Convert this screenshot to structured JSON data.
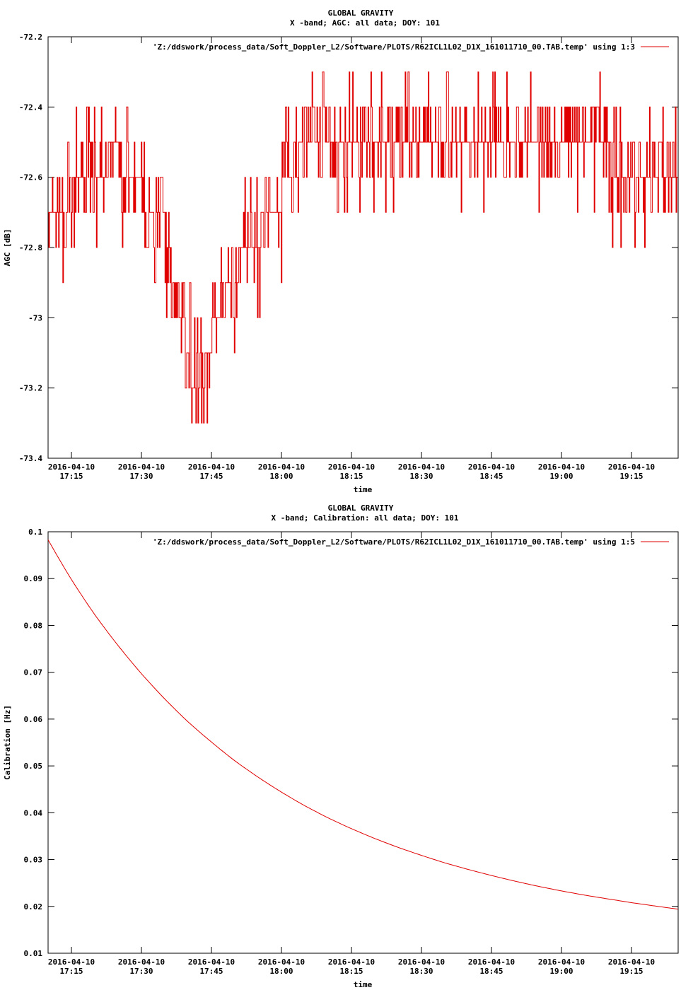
{
  "charts": [
    {
      "title": "GLOBAL GRAVITY",
      "subtitle": "X -band; AGC: all data; DOY: 101",
      "xlabel": "time",
      "ylabel": "AGC [dB]",
      "legend": "'Z:/ddswork/process_data/Soft_Doppler_L2/Software/PLOTS/R62ICL1L02_D1X_161011710_00.TAB.temp' using 1:3",
      "ytick_labels": [
        "-72.2",
        "-72.4",
        "-72.6",
        "-72.8",
        "-73",
        "-73.2",
        "-73.4"
      ],
      "xtick_dates": [
        "2016-04-10",
        "2016-04-10",
        "2016-04-10",
        "2016-04-10",
        "2016-04-10",
        "2016-04-10",
        "2016-04-10",
        "2016-04-10",
        "2016-04-10"
      ],
      "xtick_times": [
        "17:15",
        "17:30",
        "17:45",
        "18:00",
        "18:15",
        "18:30",
        "18:45",
        "19:00",
        "19:15"
      ]
    },
    {
      "title": "GLOBAL GRAVITY",
      "subtitle": "X -band; Calibration: all data; DOY: 101",
      "xlabel": "time",
      "ylabel": "Calibration [Hz]",
      "legend": "'Z:/ddswork/process_data/Soft_Doppler_L2/Software/PLOTS/R62ICL1L02_D1X_161011710_00.TAB.temp' using 1:5",
      "ytick_labels": [
        "0.1",
        "0.09",
        "0.08",
        "0.07",
        "0.06",
        "0.05",
        "0.04",
        "0.03",
        "0.02",
        "0.01"
      ],
      "xtick_dates": [
        "2016-04-10",
        "2016-04-10",
        "2016-04-10",
        "2016-04-10",
        "2016-04-10",
        "2016-04-10",
        "2016-04-10",
        "2016-04-10",
        "2016-04-10"
      ],
      "xtick_times": [
        "17:15",
        "17:30",
        "17:45",
        "18:00",
        "18:15",
        "18:30",
        "18:45",
        "19:00",
        "19:15"
      ]
    }
  ],
  "chart_data": [
    {
      "type": "line",
      "title": "GLOBAL GRAVITY",
      "subtitle": "X -band; AGC: all data; DOY: 101",
      "xlabel": "time",
      "ylabel": "AGC [dB]",
      "ylim": [
        -73.4,
        -72.2
      ],
      "xlim": [
        "2016-04-10 17:10",
        "2016-04-10 19:25"
      ],
      "yticks": [
        -72.2,
        -72.4,
        -72.6,
        -72.8,
        -73.0,
        -73.2,
        -73.4
      ],
      "xticks": [
        "2016-04-10 17:15",
        "2016-04-10 17:30",
        "2016-04-10 17:45",
        "2016-04-10 18:00",
        "2016-04-10 18:15",
        "2016-04-10 18:30",
        "2016-04-10 18:45",
        "2016-04-10 19:00",
        "2016-04-10 19:15"
      ],
      "color": "#e00000",
      "legend_position": "top-right",
      "series": [
        {
          "name": "'Z:/ddswork/process_data/Soft_Doppler_L2/Software/PLOTS/R62ICL1L02_D1X_161011710_00.TAB.temp' using 1:3",
          "x": [
            "17:10",
            "17:13",
            "17:17",
            "17:20",
            "17:23",
            "17:25",
            "17:27",
            "17:30",
            "17:33",
            "17:35",
            "17:37",
            "17:39",
            "17:40",
            "17:41",
            "17:42",
            "17:43",
            "17:44",
            "17:45",
            "17:46",
            "17:47",
            "17:49",
            "17:51",
            "17:54",
            "17:57",
            "18:00",
            "18:04",
            "18:08",
            "18:12",
            "18:15",
            "18:20",
            "18:25",
            "18:30",
            "18:35",
            "18:40",
            "18:45",
            "18:50",
            "18:55",
            "19:00",
            "19:05",
            "19:10",
            "19:15",
            "19:20",
            "19:25"
          ],
          "values": [
            -72.7,
            -72.7,
            -72.6,
            -72.6,
            -72.55,
            -72.55,
            -72.6,
            -72.65,
            -72.7,
            -72.75,
            -72.9,
            -73.0,
            -73.1,
            -73.2,
            -73.25,
            -73.2,
            -73.1,
            -73.05,
            -73.0,
            -72.95,
            -72.9,
            -72.85,
            -72.8,
            -72.7,
            -72.65,
            -72.55,
            -72.5,
            -72.5,
            -72.55,
            -72.55,
            -72.55,
            -72.55,
            -72.55,
            -72.55,
            -72.55,
            -72.55,
            -72.55,
            -72.55,
            -72.55,
            -72.55,
            -72.6,
            -72.6,
            -72.6
          ]
        }
      ]
    },
    {
      "type": "line",
      "title": "GLOBAL GRAVITY",
      "subtitle": "X -band; Calibration: all data; DOY: 101",
      "xlabel": "time",
      "ylabel": "Calibration [Hz]",
      "ylim": [
        0.01,
        0.1
      ],
      "xlim": [
        "2016-04-10 17:10",
        "2016-04-10 19:25"
      ],
      "yticks": [
        0.1,
        0.09,
        0.08,
        0.07,
        0.06,
        0.05,
        0.04,
        0.03,
        0.02,
        0.01
      ],
      "xticks": [
        "2016-04-10 17:15",
        "2016-04-10 17:30",
        "2016-04-10 17:45",
        "2016-04-10 18:00",
        "2016-04-10 18:15",
        "2016-04-10 18:30",
        "2016-04-10 18:45",
        "2016-04-10 19:00",
        "2016-04-10 19:15"
      ],
      "color": "#e00000",
      "legend_position": "top-right",
      "series": [
        {
          "name": "'Z:/ddswork/process_data/Soft_Doppler_L2/Software/PLOTS/R62ICL1L02_D1X_161011710_00.TAB.temp' using 1:5",
          "x": [
            "17:10",
            "17:15",
            "17:20",
            "17:25",
            "17:30",
            "17:35",
            "17:40",
            "17:45",
            "17:50",
            "17:55",
            "18:00",
            "18:05",
            "18:10",
            "18:15",
            "18:20",
            "18:25",
            "18:30",
            "18:35",
            "18:40",
            "18:45",
            "18:50",
            "18:55",
            "19:00",
            "19:05",
            "19:10",
            "19:15",
            "19:20",
            "19:25"
          ],
          "values": [
            0.0983,
            0.0898,
            0.0823,
            0.0757,
            0.0697,
            0.0643,
            0.0594,
            0.0551,
            0.0511,
            0.0476,
            0.0444,
            0.0415,
            0.0389,
            0.0366,
            0.0345,
            0.0326,
            0.0309,
            0.0293,
            0.0279,
            0.0266,
            0.0254,
            0.0243,
            0.0233,
            0.0224,
            0.0216,
            0.0208,
            0.0201,
            0.0194
          ]
        }
      ]
    }
  ]
}
